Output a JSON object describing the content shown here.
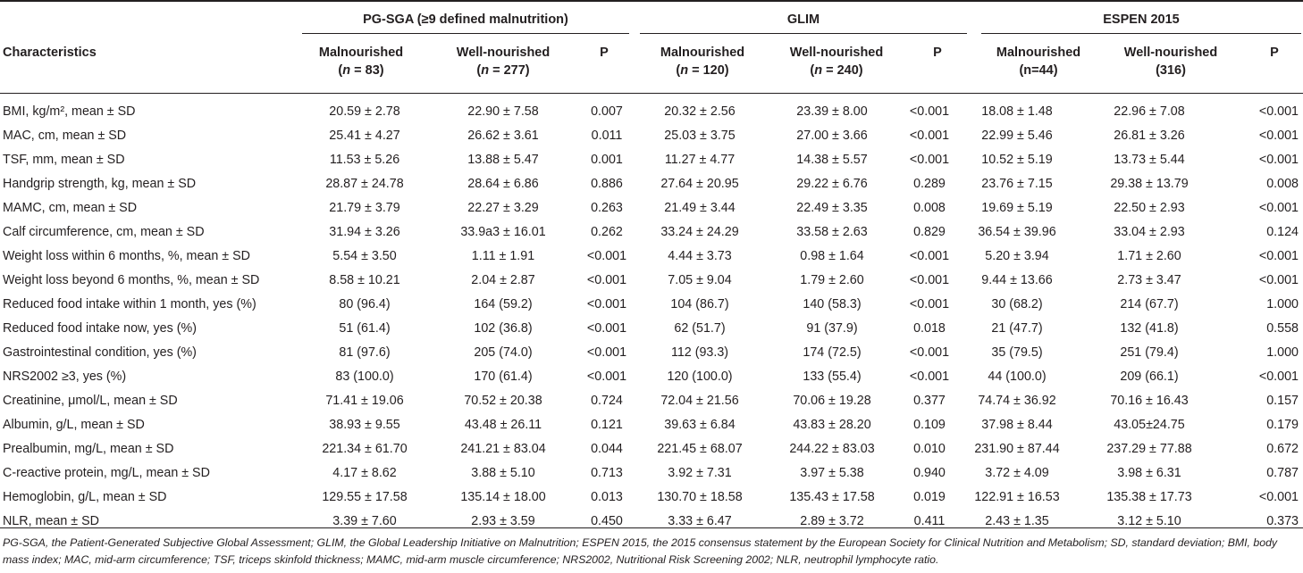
{
  "groups": {
    "pgsga": "PG-SGA (≥9 defined malnutrition)",
    "glim": "GLIM",
    "espen": "ESPEN 2015"
  },
  "headers": {
    "characteristics": "Characteristics",
    "pgsga": {
      "mal": "Malnourished",
      "mal_n_prefix": "(",
      "mal_n_var": "n",
      "mal_n_val": " = 83)",
      "well": "Well-nourished",
      "well_n_prefix": "(",
      "well_n_var": "n",
      "well_n_val": " = 277)",
      "p": "P"
    },
    "glim": {
      "mal": "Malnourished",
      "mal_n_prefix": "(",
      "mal_n_var": "n",
      "mal_n_val": " = 120)",
      "well": "Well-nourished",
      "well_n_prefix": "(",
      "well_n_var": "n",
      "well_n_val": " = 240)",
      "p": "P"
    },
    "espen": {
      "mal": "Malnourished",
      "mal_n": "(n=44)",
      "well": "Well-nourished",
      "well_n": "(316)",
      "p": "P"
    }
  },
  "rows": [
    {
      "label": "BMI, kg/m², mean ± SD",
      "cells": [
        "20.59 ± 2.78",
        "22.90 ± 7.58",
        "0.007",
        "20.32 ± 2.56",
        "23.39 ± 8.00",
        "<0.001",
        "18.08 ± 1.48",
        "22.96 ± 7.08",
        "<0.001"
      ]
    },
    {
      "label": "MAC, cm, mean ± SD",
      "cells": [
        "25.41 ± 4.27",
        "26.62 ± 3.61",
        "0.011",
        "25.03 ± 3.75",
        "27.00 ± 3.66",
        "<0.001",
        "22.99 ± 5.46",
        "26.81 ± 3.26",
        "<0.001"
      ]
    },
    {
      "label": "TSF, mm, mean ± SD",
      "cells": [
        "11.53 ± 5.26",
        "13.88 ± 5.47",
        "0.001",
        "11.27 ± 4.77",
        "14.38 ± 5.57",
        "<0.001",
        "10.52 ± 5.19",
        "13.73 ± 5.44",
        "<0.001"
      ]
    },
    {
      "label": "Handgrip strength, kg, mean ± SD",
      "cells": [
        "28.87 ± 24.78",
        "28.64 ± 6.86",
        "0.886",
        "27.64 ± 20.95",
        "29.22 ± 6.76",
        "0.289",
        "23.76 ± 7.15",
        "29.38 ± 13.79",
        "0.008"
      ]
    },
    {
      "label": "MAMC, cm, mean ± SD",
      "cells": [
        "21.79 ± 3.79",
        "22.27 ± 3.29",
        "0.263",
        "21.49 ± 3.44",
        "22.49 ± 3.35",
        "0.008",
        "19.69 ± 5.19",
        "22.50 ± 2.93",
        "<0.001"
      ]
    },
    {
      "label": "Calf circumference, cm, mean ± SD",
      "cells": [
        "31.94 ± 3.26",
        "33.9a3 ± 16.01",
        "0.262",
        "33.24 ± 24.29",
        "33.58 ± 2.63",
        "0.829",
        "36.54 ± 39.96",
        "33.04 ± 2.93",
        "0.124"
      ]
    },
    {
      "label": "Weight loss within 6 months, %, mean ± SD",
      "cells": [
        "5.54 ± 3.50",
        "1.11 ± 1.91",
        "<0.001",
        "4.44 ± 3.73",
        "0.98 ± 1.64",
        "<0.001",
        "5.20 ± 3.94",
        "1.71 ± 2.60",
        "<0.001"
      ]
    },
    {
      "label": "Weight loss beyond 6 months, %, mean ± SD",
      "cells": [
        "8.58 ± 10.21",
        "2.04 ± 2.87",
        "<0.001",
        "7.05 ± 9.04",
        "1.79 ± 2.60",
        "<0.001",
        "9.44 ± 13.66",
        "2.73 ± 3.47",
        "<0.001"
      ]
    },
    {
      "label": "Reduced food intake within 1 month, yes (%)",
      "cells": [
        "80 (96.4)",
        "164 (59.2)",
        "<0.001",
        "104 (86.7)",
        "140 (58.3)",
        "<0.001",
        "30 (68.2)",
        "214 (67.7)",
        "1.000"
      ]
    },
    {
      "label": "Reduced food intake now, yes (%)",
      "cells": [
        "51 (61.4)",
        "102 (36.8)",
        "<0.001",
        "62 (51.7)",
        "91 (37.9)",
        "0.018",
        "21 (47.7)",
        "132 (41.8)",
        "0.558"
      ]
    },
    {
      "label": "Gastrointestinal condition, yes (%)",
      "cells": [
        "81 (97.6)",
        "205 (74.0)",
        "<0.001",
        "112 (93.3)",
        "174 (72.5)",
        "<0.001",
        "35 (79.5)",
        "251 (79.4)",
        "1.000"
      ]
    },
    {
      "label": "NRS2002 ≥3, yes (%)",
      "cells": [
        "83 (100.0)",
        "170 (61.4)",
        "<0.001",
        "120 (100.0)",
        "133 (55.4)",
        "<0.001",
        "44 (100.0)",
        "209 (66.1)",
        "<0.001"
      ]
    },
    {
      "label": "Creatinine, μmol/L, mean ± SD",
      "cells": [
        "71.41 ± 19.06",
        "70.52 ± 20.38",
        "0.724",
        "72.04 ± 21.56",
        "70.06 ± 19.28",
        "0.377",
        "74.74 ± 36.92",
        "70.16 ± 16.43",
        "0.157"
      ]
    },
    {
      "label": "Albumin, g/L, mean ± SD",
      "cells": [
        "38.93 ± 9.55",
        "43.48 ± 26.11",
        "0.121",
        "39.63 ± 6.84",
        "43.83 ± 28.20",
        "0.109",
        "37.98 ± 8.44",
        "43.05±24.75",
        "0.179"
      ]
    },
    {
      "label": "Prealbumin, mg/L, mean ± SD",
      "cells": [
        "221.34 ± 61.70",
        "241.21 ± 83.04",
        "0.044",
        "221.45 ± 68.07",
        "244.22 ± 83.03",
        "0.010",
        "231.90 ± 87.44",
        "237.29 ± 77.88",
        "0.672"
      ]
    },
    {
      "label": "C-reactive protein, mg/L, mean ± SD",
      "cells": [
        "4.17 ± 8.62",
        "3.88 ± 5.10",
        "0.713",
        "3.92 ± 7.31",
        "3.97 ± 5.38",
        "0.940",
        "3.72 ± 4.09",
        "3.98 ± 6.31",
        "0.787"
      ]
    },
    {
      "label": "Hemoglobin, g/L, mean ± SD",
      "cells": [
        "129.55 ± 17.58",
        "135.14 ± 18.00",
        "0.013",
        "130.70 ± 18.58",
        "135.43 ± 17.58",
        "0.019",
        "122.91 ± 16.53",
        "135.38 ± 17.73",
        "<0.001"
      ]
    },
    {
      "label": "NLR, mean ± SD",
      "cells": [
        "3.39 ± 7.60",
        "2.93 ± 3.59",
        "0.450",
        "3.33 ± 6.47",
        "2.89 ± 3.72",
        "0.411",
        "2.43 ± 1.35",
        "3.12 ± 5.10",
        "0.373"
      ]
    }
  ],
  "footnote": "PG-SGA, the Patient-Generated Subjective Global Assessment; GLIM, the Global Leadership Initiative on Malnutrition; ESPEN 2015, the 2015 consensus statement by the European Society for Clinical Nutrition and Metabolism; SD, standard deviation; BMI, body mass index; MAC, mid-arm circumference; TSF, triceps skinfold thickness; MAMC, mid-arm muscle circumference; NRS2002, Nutritional Risk Screening 2002; NLR, neutrophil lymphocyte ratio."
}
